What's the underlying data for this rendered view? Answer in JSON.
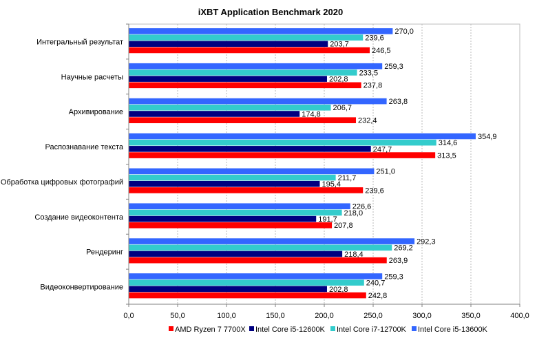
{
  "chart_data": {
    "type": "bar",
    "orientation": "horizontal",
    "title": "iXBT Application Benchmark 2020",
    "xlabel": "",
    "ylabel": "",
    "xlim": [
      0,
      400
    ],
    "x_ticks": [
      "0,0",
      "50,0",
      "100,0",
      "150,0",
      "200,0",
      "250,0",
      "300,0",
      "350,0",
      "400,0"
    ],
    "x_tick_values": [
      0,
      50,
      100,
      150,
      200,
      250,
      300,
      350,
      400
    ],
    "grid": "vertical dashed",
    "legend_position": "bottom",
    "categories": [
      "Интегральный результат",
      "Научные расчеты",
      "Архивирование",
      "Распознавание текста",
      "Обработка цифровых фотографий",
      "Создание видеоконтента",
      "Рендеринг",
      "Видеоконвертирование"
    ],
    "series": [
      {
        "name": "AMD Ryzen 7 7700X",
        "color": "#ff0000",
        "values": [
          246.5,
          237.8,
          232.4,
          313.5,
          239.6,
          207.8,
          263.9,
          242.8
        ],
        "labels": [
          "246,5",
          "237,8",
          "232,4",
          "313,5",
          "239,6",
          "207,8",
          "263,9",
          "242,8"
        ]
      },
      {
        "name": "Intel Core i5-12600K",
        "color": "#000080",
        "values": [
          203.7,
          202.8,
          174.8,
          247.7,
          195.4,
          191.7,
          218.4,
          202.8
        ],
        "labels": [
          "203,7",
          "202,8",
          "174,8",
          "247,7",
          "195,4",
          "191,7",
          "218,4",
          "202,8"
        ]
      },
      {
        "name": "Intel Core i7-12700K",
        "color": "#33cccc",
        "values": [
          239.6,
          233.5,
          206.7,
          314.6,
          211.7,
          218.0,
          269.2,
          240.7
        ],
        "labels": [
          "239,6",
          "233,5",
          "206,7",
          "314,6",
          "211,7",
          "218,0",
          "269,2",
          "240,7"
        ]
      },
      {
        "name": "Intel Core i5-13600K",
        "color": "#3366ff",
        "values": [
          270.0,
          259.3,
          263.8,
          354.9,
          251.0,
          226.6,
          292.3,
          259.3
        ],
        "labels": [
          "270,0",
          "259,3",
          "263,8",
          "354,9",
          "251,0",
          "226,6",
          "292,3",
          "259,3"
        ]
      }
    ]
  }
}
